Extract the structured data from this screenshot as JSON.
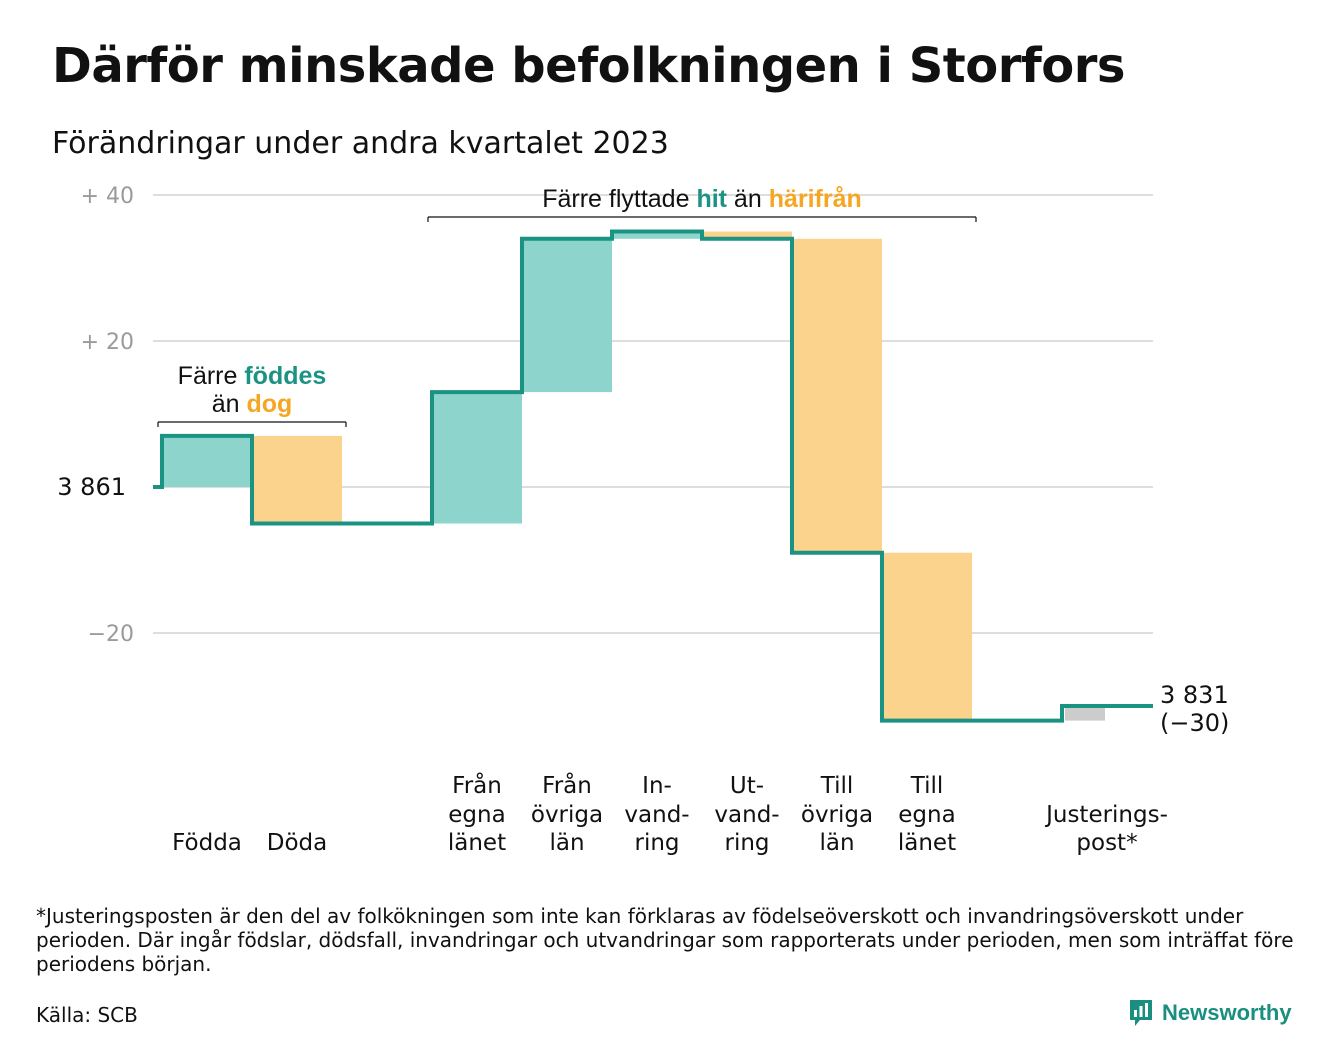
{
  "title": "Därför minskade befolkningen i Storfors",
  "subtitle": "Förändringar under andra kvartalet 2023",
  "footnote": "*Justeringsposten är den del av folkökningen som inte kan förklaras av födelseöverskott och invandringsöverskott under perioden. Där ingår födslar, dödsfall, invandringar och utvandringar som rapporterats under perioden, men som inträffat före periodens början.",
  "source": "Källa: SCB",
  "brand": "Newsworthy",
  "colors": {
    "increase": "#8dd5cc",
    "decrease": "#fbd38c",
    "adjustment": "#cccccc",
    "line": "#1a9383",
    "accent_orange": "#f5a623",
    "grid": "#dddddd"
  },
  "chart_data": {
    "type": "waterfall",
    "start_value": 3861,
    "start_label": "3 861",
    "end_value": 3831,
    "end_label": "3 831",
    "end_change_label": "(−30)",
    "y_ticks": [
      {
        "value": 40,
        "label": "+  40"
      },
      {
        "value": 20,
        "label": "+  20"
      },
      {
        "value": -20,
        "label": "−20"
      }
    ],
    "ylim": [
      -35,
      43
    ],
    "grid": true,
    "steps": [
      {
        "id": "fodda",
        "label": [
          "",
          "",
          "Födda"
        ],
        "change": 7,
        "kind": "increase"
      },
      {
        "id": "doda",
        "label": [
          "",
          "",
          "Döda"
        ],
        "change": -12,
        "kind": "decrease"
      },
      {
        "id": "tom",
        "label": [
          "",
          "",
          ""
        ],
        "change": 0,
        "kind": "none"
      },
      {
        "id": "fran-egna-lanet",
        "label": [
          "Från",
          "egna",
          "länet"
        ],
        "change": 18,
        "kind": "increase"
      },
      {
        "id": "fran-ovriga-lan",
        "label": [
          "Från",
          "övriga",
          "län"
        ],
        "change": 21,
        "kind": "increase"
      },
      {
        "id": "invandring",
        "label": [
          "In-",
          "vand-",
          "ring"
        ],
        "change": 1,
        "kind": "increase"
      },
      {
        "id": "utvandring",
        "label": [
          "Ut-",
          "vand-",
          "ring"
        ],
        "change": -1,
        "kind": "decrease"
      },
      {
        "id": "till-ovriga-lan",
        "label": [
          "Till",
          "övriga",
          "län"
        ],
        "change": -43,
        "kind": "decrease"
      },
      {
        "id": "till-egna-lanet",
        "label": [
          "Till",
          "egna",
          "länet"
        ],
        "change": -23,
        "kind": "decrease"
      },
      {
        "id": "tom2",
        "label": [
          "",
          "",
          ""
        ],
        "change": 0,
        "kind": "none"
      },
      {
        "id": "justeringspost",
        "label": [
          "",
          "Justerings-",
          "post*"
        ],
        "change": 2,
        "kind": "adjustment"
      }
    ],
    "annotations": [
      {
        "id": "fodda-doda",
        "from_step": 0,
        "to_step": 1,
        "lines": [
          [
            {
              "text": "Färre ",
              "style": "plain"
            },
            {
              "text": "föddes",
              "style": "increase"
            }
          ],
          [
            {
              "text": "än ",
              "style": "plain"
            },
            {
              "text": "dog",
              "style": "decrease"
            }
          ]
        ]
      },
      {
        "id": "flyttade",
        "from_step": 3,
        "to_step": 8,
        "lines": [
          [
            {
              "text": "Färre flyttade ",
              "style": "plain"
            },
            {
              "text": "hit",
              "style": "increase"
            },
            {
              "text": " än ",
              "style": "plain"
            },
            {
              "text": "härifrån",
              "style": "decrease"
            }
          ]
        ]
      }
    ]
  }
}
